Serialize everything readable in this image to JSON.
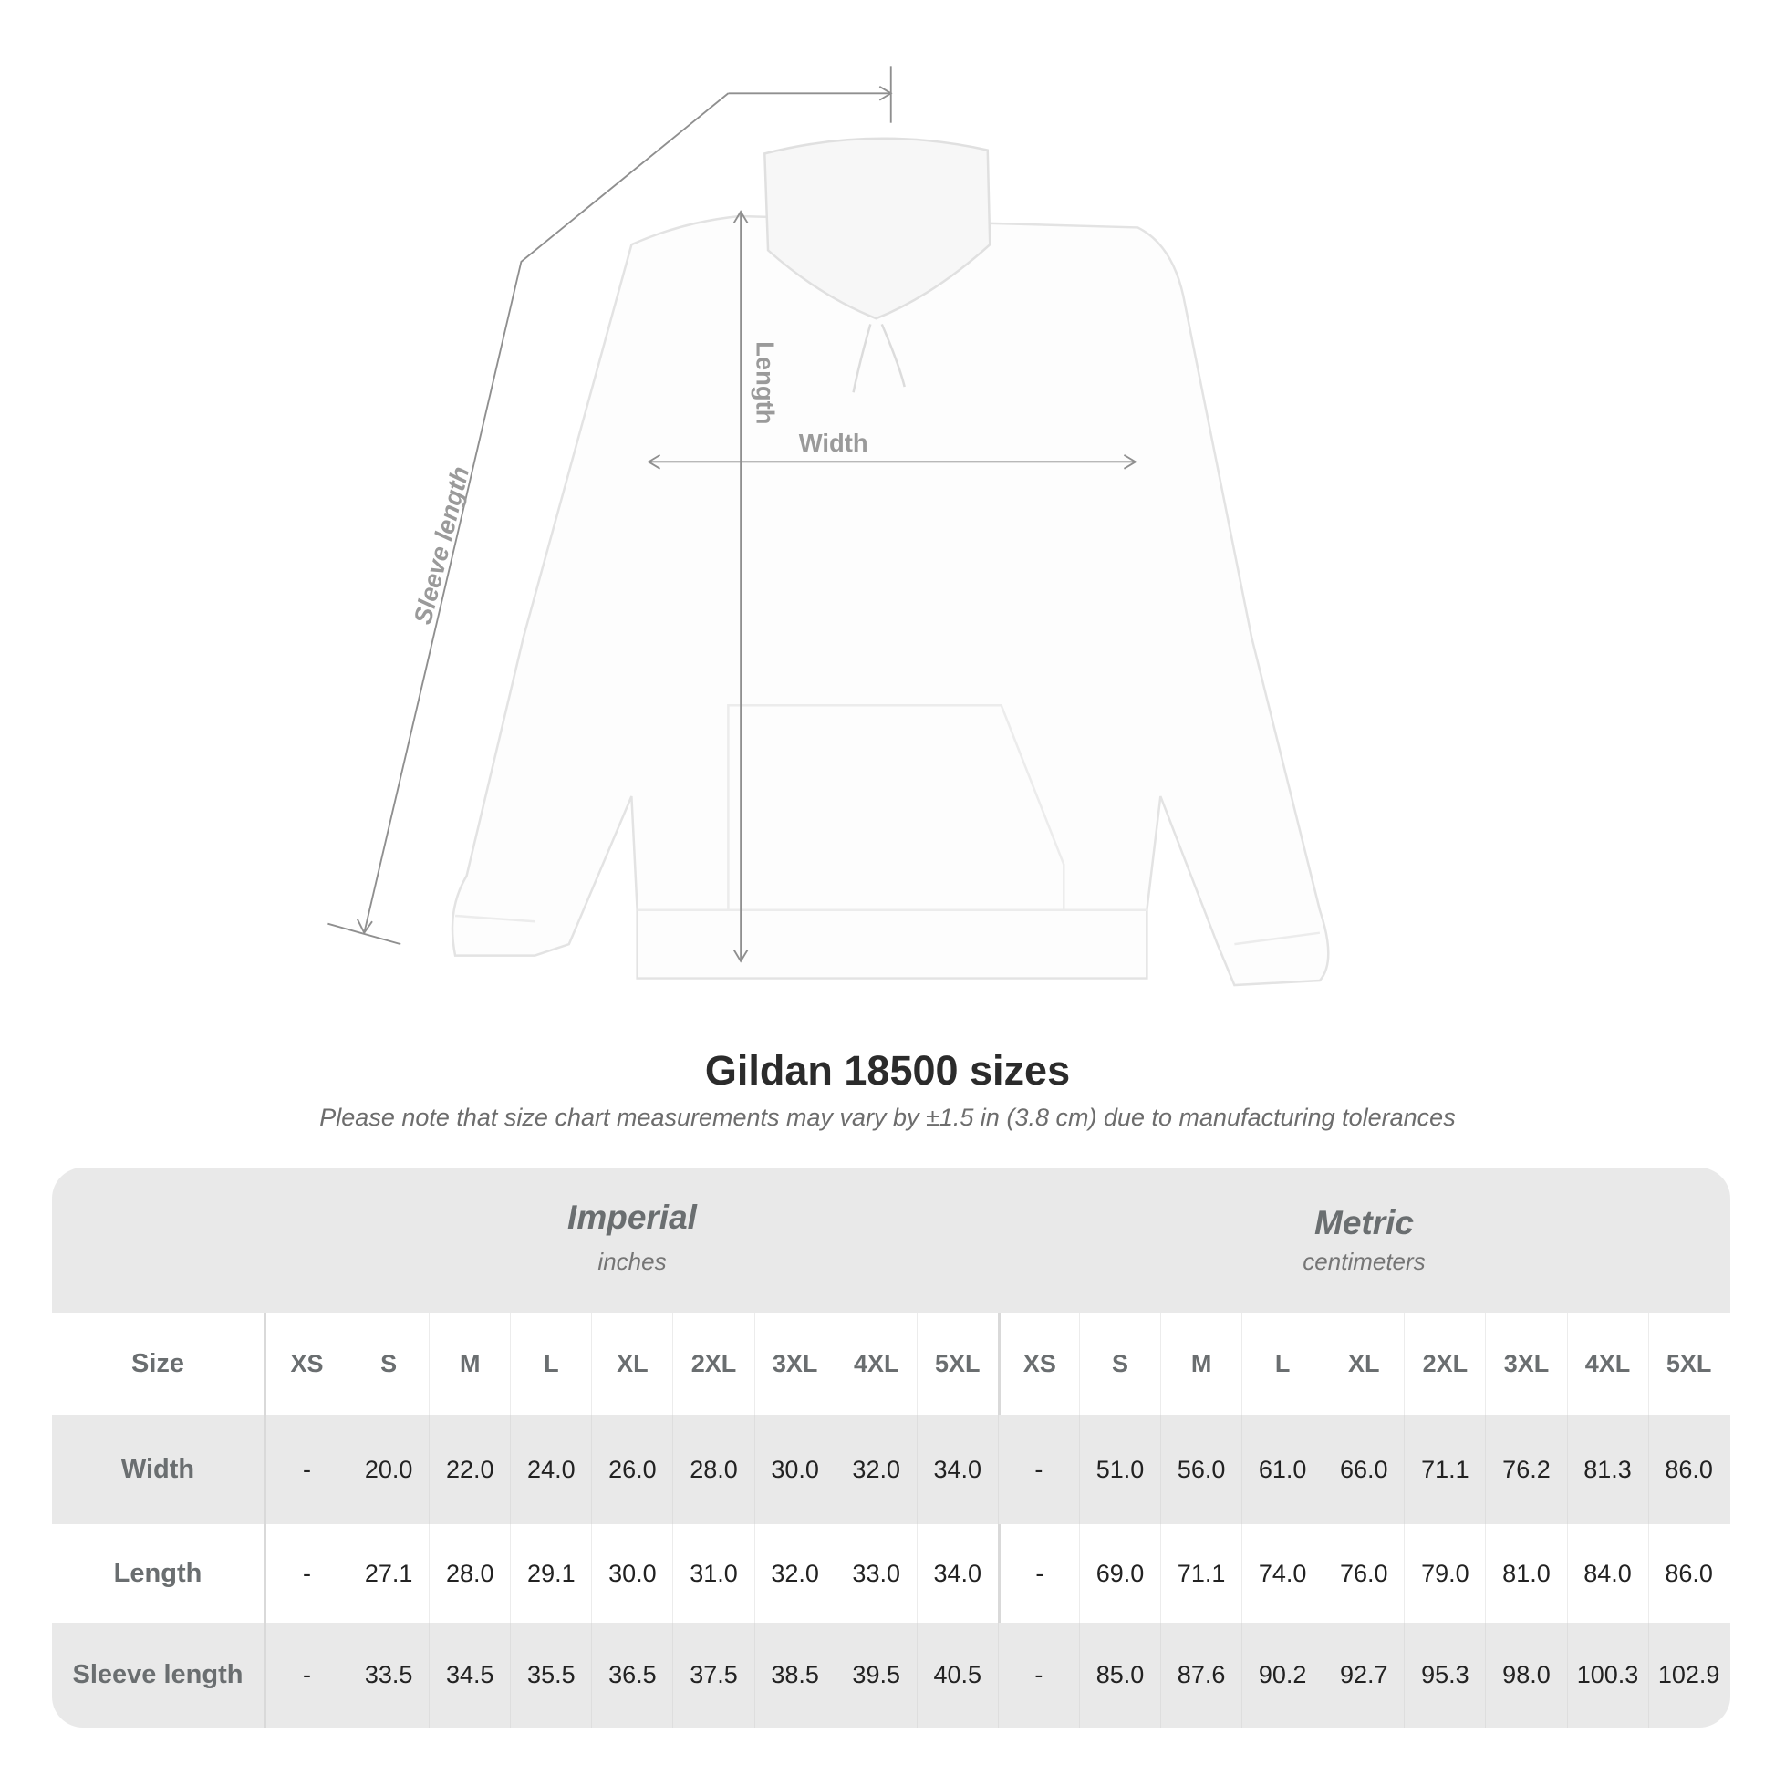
{
  "diagram": {
    "labels": {
      "sleeve": "Sleeve length",
      "length": "Length",
      "width": "Width"
    }
  },
  "title": "Gildan 18500 sizes",
  "note": "Please note that size chart measurements may vary by ±1.5 in (3.8 cm) due to manufacturing tolerances",
  "table": {
    "imperial": {
      "name": "Imperial",
      "unit": "inches"
    },
    "metric": {
      "name": "Metric",
      "unit": "centimeters"
    },
    "size_label": "Size",
    "sizes": [
      "XS",
      "S",
      "M",
      "L",
      "XL",
      "2XL",
      "3XL",
      "4XL",
      "5XL"
    ],
    "rows": [
      {
        "label": "Width",
        "imperial": [
          "-",
          "20.0",
          "22.0",
          "24.0",
          "26.0",
          "28.0",
          "30.0",
          "32.0",
          "34.0"
        ],
        "metric": [
          "-",
          "51.0",
          "56.0",
          "61.0",
          "66.0",
          "71.1",
          "76.2",
          "81.3",
          "86.0"
        ]
      },
      {
        "label": "Length",
        "imperial": [
          "-",
          "27.1",
          "28.0",
          "29.1",
          "30.0",
          "31.0",
          "32.0",
          "33.0",
          "34.0"
        ],
        "metric": [
          "-",
          "69.0",
          "71.1",
          "74.0",
          "76.0",
          "79.0",
          "81.0",
          "84.0",
          "86.0"
        ]
      },
      {
        "label": "Sleeve length",
        "imperial": [
          "-",
          "33.5",
          "34.5",
          "35.5",
          "36.5",
          "37.5",
          "38.5",
          "39.5",
          "40.5"
        ],
        "metric": [
          "-",
          "85.0",
          "87.6",
          "90.2",
          "92.7",
          "95.3",
          "98.0",
          "100.3",
          "102.9"
        ]
      }
    ]
  }
}
